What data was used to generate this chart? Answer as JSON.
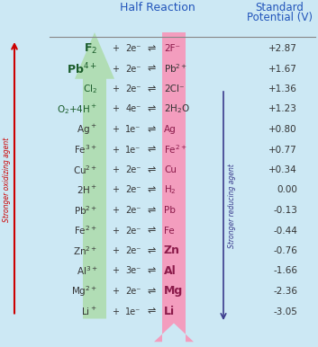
{
  "title1": "Half Reaction",
  "title2": "Standard\nPotential (V)",
  "bg_color": "#cce8f4",
  "rows": [
    {
      "left": "F$_2$",
      "plus": "+",
      "electrons": "2e⁻",
      "eq": "⇌",
      "right": "2F⁻",
      "potential": "+2.87",
      "bold_left": true,
      "bold_right": false,
      "left_green": true,
      "right_pink": true
    },
    {
      "left": "Pb$^{4+}$",
      "plus": "+",
      "electrons": "2e⁻",
      "eq": "⇌",
      "right": "Pb$^{2+}$",
      "potential": "+1.67",
      "bold_left": true,
      "bold_right": false,
      "left_green": true,
      "right_pink": false
    },
    {
      "left": "Cl$_2$",
      "plus": "+",
      "electrons": "2e⁻",
      "eq": "⇌",
      "right": "2Cl⁻",
      "potential": "+1.36",
      "bold_left": false,
      "bold_right": false,
      "left_green": true,
      "right_pink": false
    },
    {
      "left": "O$_2$+4H$^+$",
      "plus": "+",
      "electrons": "4e⁻",
      "eq": "⇌",
      "right": "2H$_2$O",
      "potential": "+1.23",
      "bold_left": false,
      "bold_right": false,
      "left_green": true,
      "right_pink": false
    },
    {
      "left": "Ag$^+$",
      "plus": "+",
      "electrons": "1e⁻",
      "eq": "⇌",
      "right": "Ag",
      "potential": "+0.80",
      "bold_left": false,
      "bold_right": false,
      "left_green": false,
      "right_pink": true
    },
    {
      "left": "Fe$^{3+}$",
      "plus": "+",
      "electrons": "1e⁻",
      "eq": "⇌",
      "right": "Fe$^{2+}$",
      "potential": "+0.77",
      "bold_left": false,
      "bold_right": false,
      "left_green": false,
      "right_pink": true
    },
    {
      "left": "Cu$^{2+}$",
      "plus": "+",
      "electrons": "2e⁻",
      "eq": "⇌",
      "right": "Cu",
      "potential": "+0.34",
      "bold_left": false,
      "bold_right": false,
      "left_green": false,
      "right_pink": true
    },
    {
      "left": "2H$^+$",
      "plus": "+",
      "electrons": "2e⁻",
      "eq": "⇌",
      "right": "H$_2$",
      "potential": "0.00",
      "bold_left": false,
      "bold_right": false,
      "left_green": false,
      "right_pink": true
    },
    {
      "left": "Pb$^{2+}$",
      "plus": "+",
      "electrons": "2e⁻",
      "eq": "⇌",
      "right": "Pb",
      "potential": "-0.13",
      "bold_left": false,
      "bold_right": false,
      "left_green": false,
      "right_pink": true
    },
    {
      "left": "Fe$^{2+}$",
      "plus": "+",
      "electrons": "2e⁻",
      "eq": "⇌",
      "right": "Fe",
      "potential": "-0.44",
      "bold_left": false,
      "bold_right": false,
      "left_green": false,
      "right_pink": true
    },
    {
      "left": "Zn$^{2+}$",
      "plus": "+",
      "electrons": "2e⁻",
      "eq": "⇌",
      "right": "Zn",
      "potential": "-0.76",
      "bold_left": false,
      "bold_right": true,
      "left_green": false,
      "right_pink": true
    },
    {
      "left": "Al$^{3+}$",
      "plus": "+",
      "electrons": "3e⁻",
      "eq": "⇌",
      "right": "Al",
      "potential": "-1.66",
      "bold_left": false,
      "bold_right": true,
      "left_green": false,
      "right_pink": true
    },
    {
      "left": "Mg$^{2+}$",
      "plus": "+",
      "electrons": "2e⁻",
      "eq": "⇌",
      "right": "Mg",
      "potential": "-2.36",
      "bold_left": false,
      "bold_right": true,
      "left_green": false,
      "right_pink": true
    },
    {
      "left": "Li$^+$",
      "plus": "+",
      "electrons": "1e⁻",
      "eq": "⇌",
      "right": "Li",
      "potential": "-3.05",
      "bold_left": false,
      "bold_right": true,
      "left_green": false,
      "right_pink": true
    }
  ],
  "green_color": "#aedcae",
  "pink_color": "#f895b8",
  "blue_arrow_color": "#3a3a8c",
  "red_arrow_color": "#cc0000",
  "header_color": "#2255bb"
}
